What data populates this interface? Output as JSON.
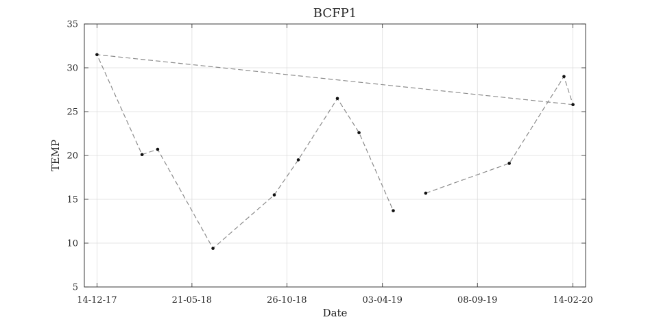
{
  "chart_data": {
    "type": "line",
    "title": "BCFP1",
    "xlabel": "Date",
    "ylabel": "TEMP",
    "x_scale": "date",
    "xlim": [
      "2017-11-23",
      "2020-03-06"
    ],
    "ylim": [
      5,
      35
    ],
    "x_ticks": [
      {
        "date": "2017-12-14",
        "label": "14-12-17"
      },
      {
        "date": "2018-05-21",
        "label": "21-05-18"
      },
      {
        "date": "2018-10-26",
        "label": "26-10-18"
      },
      {
        "date": "2019-04-03",
        "label": "03-04-19"
      },
      {
        "date": "2019-09-08",
        "label": "08-09-19"
      },
      {
        "date": "2020-02-14",
        "label": "14-02-20"
      }
    ],
    "y_ticks": [
      5,
      10,
      15,
      20,
      25,
      30,
      35
    ],
    "grid": true,
    "legend": "none",
    "colors": {
      "line": "#8c8c8c",
      "marker": "#111111",
      "grid": "#dcdcdc",
      "axis": "#262626"
    },
    "segments": [
      [
        {
          "x": "2020-02-14",
          "y": 25.8
        },
        {
          "x": "2017-12-14",
          "y": 31.5
        },
        {
          "x": "2018-02-27",
          "y": 20.1
        },
        {
          "x": "2018-03-25",
          "y": 20.7
        },
        {
          "x": "2018-06-25",
          "y": 9.4
        },
        {
          "x": "2018-10-05",
          "y": 15.5
        },
        {
          "x": "2018-11-14",
          "y": 19.5
        },
        {
          "x": "2019-01-18",
          "y": 26.5
        },
        {
          "x": "2019-02-23",
          "y": 22.6
        },
        {
          "x": "2019-04-21",
          "y": 13.7
        }
      ],
      [
        {
          "x": "2019-06-14",
          "y": 15.7
        },
        {
          "x": "2019-10-31",
          "y": 19.1
        },
        {
          "x": "2020-01-30",
          "y": 29.0
        },
        {
          "x": "2020-02-14",
          "y": 25.8
        }
      ]
    ]
  }
}
